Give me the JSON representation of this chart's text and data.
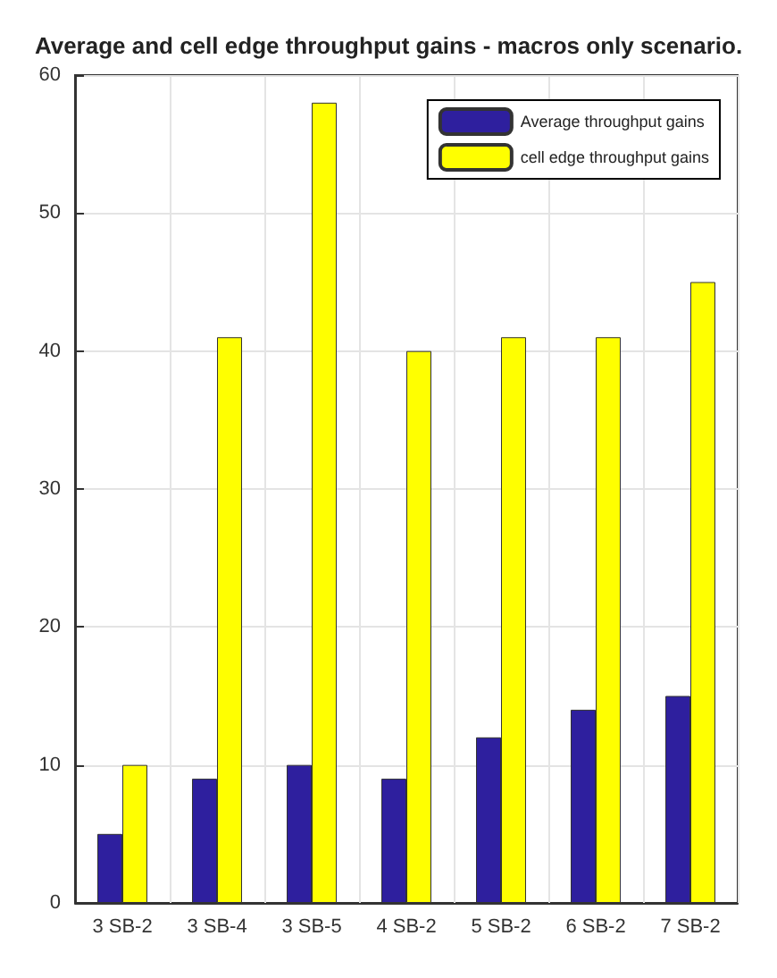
{
  "chart_data": {
    "type": "bar",
    "title": "Average and cell edge throughput gains - macros only scenario.",
    "categories": [
      "3 SB-2",
      "3 SB-4",
      "3 SB-5",
      "4 SB-2",
      "5 SB-2",
      "6 SB-2",
      "7 SB-2"
    ],
    "series": [
      {
        "name": "Average throughput gains",
        "color": "#2e1f9e",
        "values": [
          5,
          9,
          10,
          9,
          12,
          14,
          15
        ]
      },
      {
        "name": "cell edge throughput gains",
        "color": "#ffff00",
        "values": [
          10,
          41,
          58,
          40,
          41,
          41,
          45
        ]
      }
    ],
    "ylim": [
      0,
      60
    ],
    "yticks": [
      0,
      10,
      20,
      30,
      40,
      50,
      60
    ],
    "grid": true,
    "legend": "top right"
  }
}
